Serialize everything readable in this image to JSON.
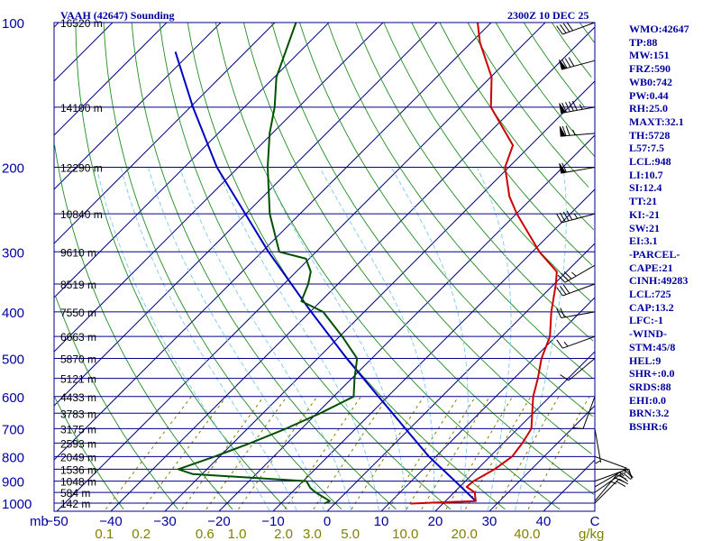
{
  "header": {
    "title": "VAAH (42647) Sounding",
    "valid_time": "2300Z 10 DEC 25"
  },
  "colors": {
    "axis": "#000080",
    "isobar": "#00008b",
    "isotherm": "#00008b",
    "dry_adiabat": "#228b22",
    "moist_adiabat": "#87ceeb",
    "mixing_ratio": "#808000",
    "temperature": "#cc0000",
    "dewpoint": "#005000",
    "parcel": "#0000c0",
    "wind": "#000000",
    "label": "#0000a0"
  },
  "chart_data": {
    "type": "skew-t",
    "pressure_units": "mb",
    "temperature_units": "C",
    "mixing_ratio_units": "g/kg",
    "pressure_range": [
      1000,
      100
    ],
    "pressure_levels": [
      {
        "p": 100,
        "label": "100",
        "height": "16520 m"
      },
      {
        "p": 150,
        "label": "",
        "height": "14100 m"
      },
      {
        "p": 200,
        "label": "200",
        "height": "12290 m"
      },
      {
        "p": 250,
        "label": "",
        "height": "10840 m"
      },
      {
        "p": 300,
        "label": "300",
        "height": "9610 m"
      },
      {
        "p": 350,
        "label": "",
        "height": "8519 m"
      },
      {
        "p": 400,
        "label": "400",
        "height": "7550 m"
      },
      {
        "p": 450,
        "label": "",
        "height": "6663 m"
      },
      {
        "p": 500,
        "label": "500",
        "height": "5870 m"
      },
      {
        "p": 550,
        "label": "",
        "height": "5121 m"
      },
      {
        "p": 600,
        "label": "600",
        "height": "4433 m"
      },
      {
        "p": 650,
        "label": "",
        "height": "3783 m"
      },
      {
        "p": 700,
        "label": "700",
        "height": "3175 m"
      },
      {
        "p": 750,
        "label": "",
        "height": "2593 m"
      },
      {
        "p": 800,
        "label": "800",
        "height": "2049 m"
      },
      {
        "p": 850,
        "label": "",
        "height": "1536 m"
      },
      {
        "p": 900,
        "label": "900",
        "height": "1048 m"
      },
      {
        "p": 950,
        "label": "",
        "height": "584 m"
      },
      {
        "p": 1000,
        "label": "1000",
        "height": "142 m"
      }
    ],
    "x_axis_unit_label": "mb",
    "temperature_ticks": [
      -50,
      -40,
      -30,
      -20,
      -10,
      0,
      10,
      20,
      30,
      40
    ],
    "temperature_tick_labels": [
      "−50",
      "−40",
      "−30",
      "−20",
      "−10",
      "0",
      "10",
      "20",
      "30",
      "40"
    ],
    "right_axis_label": "C",
    "mixing_ratio_labels": [
      "0.1",
      "0.2",
      "0.6",
      "1.0",
      "2.0",
      "3.0",
      "5.0",
      "10.0",
      "20.0",
      "40.0"
    ],
    "mixing_ratio_values": [
      0.1,
      0.2,
      0.6,
      1.0,
      2.0,
      3.0,
      5.0,
      10.0,
      20.0,
      40.0
    ],
    "mixing_ratio_unit": "g/kg",
    "temperature": [
      [
        1002,
        14
      ],
      [
        990,
        25.6
      ],
      [
        950,
        23.8
      ],
      [
        925,
        21.3
      ],
      [
        900,
        21.5
      ],
      [
        850,
        23.2
      ],
      [
        800,
        24.1
      ],
      [
        750,
        23.5
      ],
      [
        700,
        22.5
      ],
      [
        650,
        19.8
      ],
      [
        600,
        16.9
      ],
      [
        550,
        14.4
      ],
      [
        500,
        11.4
      ],
      [
        450,
        8.9
      ],
      [
        400,
        4.6
      ],
      [
        350,
        0.3
      ],
      [
        330,
        -1.8
      ],
      [
        300,
        -8.7
      ],
      [
        250,
        -19.9
      ],
      [
        230,
        -24.5
      ],
      [
        200,
        -30.7
      ],
      [
        180,
        -33.3
      ],
      [
        150,
        -44.4
      ],
      [
        130,
        -49.8
      ],
      [
        110,
        -58.4
      ],
      [
        100,
        -62.5
      ]
    ],
    "dewpoint": [
      [
        1002,
        -2
      ],
      [
        990,
        -1.4
      ],
      [
        950,
        -5.6
      ],
      [
        930,
        -7.4
      ],
      [
        900,
        -9.4
      ],
      [
        870,
        -31.7
      ],
      [
        850,
        -35.3
      ],
      [
        800,
        -30.9
      ],
      [
        750,
        -26.8
      ],
      [
        700,
        -22.9
      ],
      [
        650,
        -19.4
      ],
      [
        600,
        -16.3
      ],
      [
        550,
        -19.5
      ],
      [
        500,
        -22.7
      ],
      [
        450,
        -29.5
      ],
      [
        400,
        -37.6
      ],
      [
        380,
        -43.6
      ],
      [
        350,
        -45.5
      ],
      [
        330,
        -47.3
      ],
      [
        310,
        -50.6
      ],
      [
        300,
        -56.8
      ],
      [
        250,
        -65.6
      ],
      [
        200,
        -74.6
      ],
      [
        170,
        -80.5
      ],
      [
        150,
        -84.4
      ],
      [
        130,
        -89.6
      ],
      [
        100,
        -96.1
      ]
    ],
    "parcel": [
      [
        990,
        25.6
      ],
      [
        900,
        18.1
      ],
      [
        800,
        8.7
      ],
      [
        700,
        -0.8
      ],
      [
        600,
        -11.7
      ],
      [
        500,
        -24.6
      ],
      [
        400,
        -39.8
      ],
      [
        300,
        -58.8
      ],
      [
        200,
        -84
      ],
      [
        150,
        -99.5
      ],
      [
        115,
        -113
      ]
    ],
    "wind_barbs": [
      {
        "p": 1000,
        "dir": 45,
        "spd": 20
      },
      {
        "p": 990,
        "dir": 40,
        "spd": 25
      },
      {
        "p": 950,
        "dir": 55,
        "spd": 20
      },
      {
        "p": 925,
        "dir": 60,
        "spd": 15
      },
      {
        "p": 900,
        "dir": 70,
        "spd": 10
      },
      {
        "p": 850,
        "dir": 90,
        "spd": 10
      },
      {
        "p": 800,
        "dir": 110,
        "spd": 5
      },
      {
        "p": 700,
        "dir": 170,
        "spd": 5
      },
      {
        "p": 600,
        "dir": 200,
        "spd": 10
      },
      {
        "p": 500,
        "dir": 230,
        "spd": 10
      },
      {
        "p": 450,
        "dir": 250,
        "spd": 15
      },
      {
        "p": 400,
        "dir": 260,
        "spd": 20
      },
      {
        "p": 350,
        "dir": 250,
        "spd": 30
      },
      {
        "p": 320,
        "dir": 240,
        "spd": 35
      },
      {
        "p": 250,
        "dir": 255,
        "spd": 45
      },
      {
        "p": 200,
        "dir": 260,
        "spd": 60
      },
      {
        "p": 170,
        "dir": 265,
        "spd": 75
      },
      {
        "p": 150,
        "dir": 260,
        "spd": 95
      },
      {
        "p": 120,
        "dir": 255,
        "spd": 80
      },
      {
        "p": 100,
        "dir": 250,
        "spd": 40
      }
    ]
  },
  "indices": [
    "WMO:42647",
    "TP:88",
    "MW:151",
    "FRZ:590",
    "WB0:742",
    "PW:0.44",
    "RH:25.0",
    "MAXT:32.1",
    "TH:5728",
    "L57:7.5",
    "LCL:948",
    "LI:10.7",
    "SI:12.4",
    "TT:21",
    "KI:-21",
    "SW:21",
    "EI:3.1",
    "-PARCEL-",
    "CAPE:21",
    "CINH:49283",
    "LCL:725",
    "CAP:13.2",
    "LFC:-1",
    "-WIND-",
    "STM:45/8",
    "HEL:9",
    "SHR+:0.0",
    "SRDS:88",
    "EHI:0.0",
    "BRN:3.2",
    "BSHR:6"
  ]
}
